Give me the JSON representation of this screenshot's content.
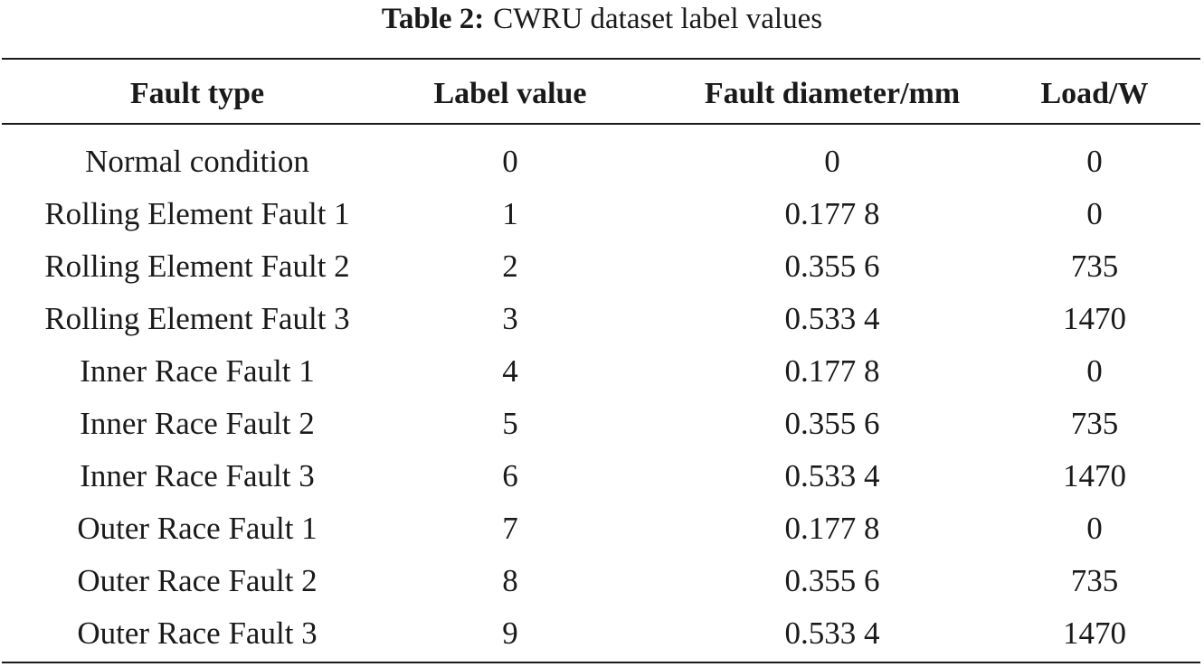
{
  "caption": {
    "label": "Table 2:",
    "text": "CWRU dataset label values"
  },
  "table": {
    "columns": [
      "Fault type",
      "Label value",
      "Fault diameter/mm",
      "Load/W"
    ],
    "rows": [
      [
        "Normal condition",
        "0",
        "0",
        "0"
      ],
      [
        "Rolling Element Fault 1",
        "1",
        "0.177 8",
        "0"
      ],
      [
        "Rolling Element Fault 2",
        "2",
        "0.355 6",
        "735"
      ],
      [
        "Rolling Element Fault 3",
        "3",
        "0.533 4",
        "1470"
      ],
      [
        "Inner Race Fault 1",
        "4",
        "0.177 8",
        "0"
      ],
      [
        "Inner Race Fault 2",
        "5",
        "0.355 6",
        "735"
      ],
      [
        "Inner Race Fault 3",
        "6",
        "0.533 4",
        "1470"
      ],
      [
        "Outer Race Fault 1",
        "7",
        "0.177 8",
        "0"
      ],
      [
        "Outer Race Fault 2",
        "8",
        "0.355 6",
        "735"
      ],
      [
        "Outer Race Fault 3",
        "9",
        "0.533 4",
        "1470"
      ]
    ]
  }
}
